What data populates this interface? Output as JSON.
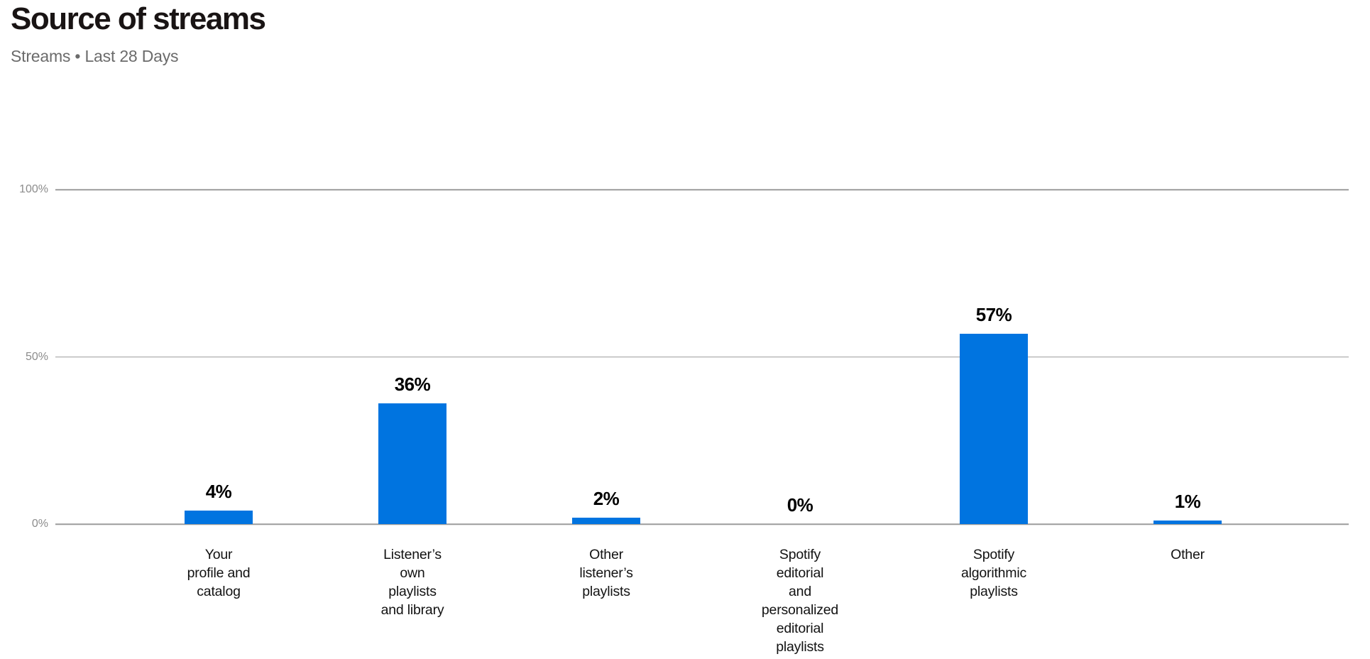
{
  "header": {
    "title": "Source of streams",
    "subtitle": "Streams • Last 28 Days"
  },
  "chart_data": {
    "type": "bar",
    "title": "Source of streams",
    "subtitle": "Streams • Last 28 Days",
    "unit": "%",
    "categories": [
      "Your profile and catalog",
      "Listener’s own playlists and library",
      "Other listener’s playlists",
      "Spotify editorial and personalized editorial playlists",
      "Spotify algorithmic playlists",
      "Other"
    ],
    "category_lines": [
      [
        "Your",
        "profile and",
        "catalog"
      ],
      [
        "Listener’s",
        "own",
        "playlists",
        "and library"
      ],
      [
        "Other",
        "listener’s",
        "playlists"
      ],
      [
        "Spotify",
        "editorial",
        "and",
        "personalized",
        "editorial",
        "playlists"
      ],
      [
        "Spotify",
        "algorithmic",
        "playlists"
      ],
      [
        "Other"
      ]
    ],
    "values": [
      4,
      36,
      2,
      0,
      57,
      1
    ],
    "value_labels": [
      "4%",
      "36%",
      "2%",
      "0%",
      "57%",
      "1%"
    ],
    "xlabel": "",
    "ylabel": "",
    "ylim": [
      0,
      100
    ],
    "yticks": [
      {
        "value": 0,
        "label": "0%"
      },
      {
        "value": 50,
        "label": "50%"
      },
      {
        "value": 100,
        "label": "100%"
      }
    ],
    "grid": true,
    "legend": "none",
    "colors": {
      "bar": "#0074e0",
      "grid": "#9c9c9c",
      "tick_text": "#8c8c8c",
      "value_text": "#000000",
      "category_text": "#121212",
      "title_text": "#191414",
      "subtitle_text": "#6b6b6b"
    }
  }
}
